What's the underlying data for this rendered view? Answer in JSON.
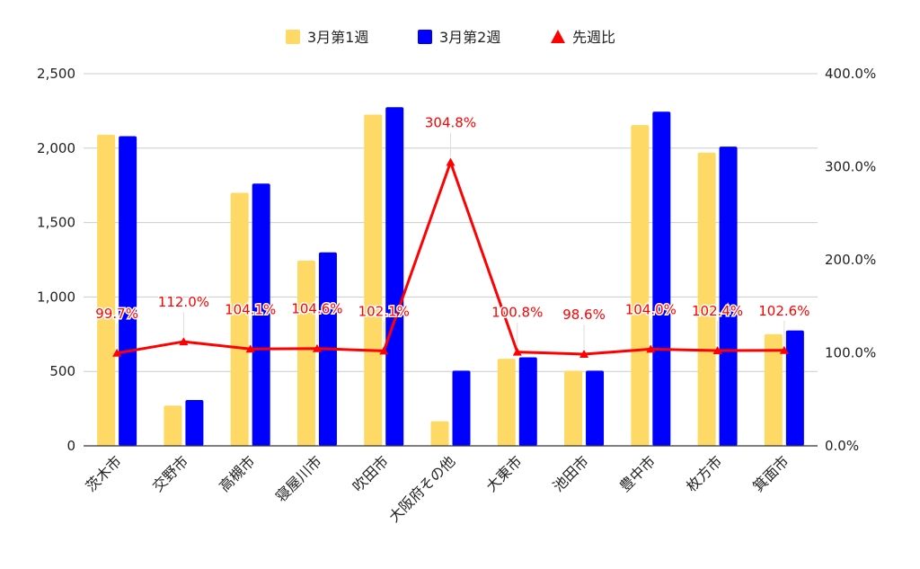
{
  "chart_data": {
    "type": "bar",
    "categories": [
      "茨木市",
      "交野市",
      "高槻市",
      "寝屋川市",
      "吹田市",
      "大阪府その他",
      "大東市",
      "池田市",
      "豊中市",
      "枚方市",
      "箕面市"
    ],
    "series": [
      {
        "name": "3月第1週",
        "kind": "bar",
        "axis": "left",
        "color": "#FFD966",
        "values": [
          2090,
          270,
          1700,
          1245,
          2225,
          165,
          585,
          505,
          2155,
          1970,
          750
        ]
      },
      {
        "name": "3月第2週",
        "kind": "bar",
        "axis": "left",
        "color": "#0000FF",
        "values": [
          2080,
          308,
          1762,
          1300,
          2275,
          505,
          595,
          505,
          2245,
          2010,
          775
        ]
      },
      {
        "name": "先週比",
        "kind": "line",
        "axis": "right",
        "color": "#FF0000",
        "values": [
          99.7,
          112.0,
          104.1,
          104.6,
          102.1,
          304.8,
          100.8,
          98.6,
          104.0,
          102.4,
          102.6
        ],
        "labels": [
          "99.7%",
          "112.0%",
          "104.1%",
          "104.6%",
          "102.1%",
          "304.8%",
          "100.8%",
          "98.6%",
          "104.0%",
          "102.4%",
          "102.6%"
        ]
      }
    ],
    "y_left": {
      "range": [
        0,
        2500
      ],
      "ticks": [
        0,
        500,
        1000,
        1500,
        2000,
        2500
      ],
      "tick_labels": [
        "0",
        "500",
        "1,000",
        "1,500",
        "2,000",
        "2,500"
      ]
    },
    "y_right": {
      "range": [
        0,
        400
      ],
      "ticks": [
        0,
        100,
        200,
        300,
        400
      ],
      "tick_labels": [
        "0.0%",
        "100.0%",
        "200.0%",
        "300.0%",
        "400.0%"
      ]
    },
    "grid": true,
    "legend_position": "top-center",
    "title": "",
    "xlabel": "",
    "ylabel": ""
  }
}
